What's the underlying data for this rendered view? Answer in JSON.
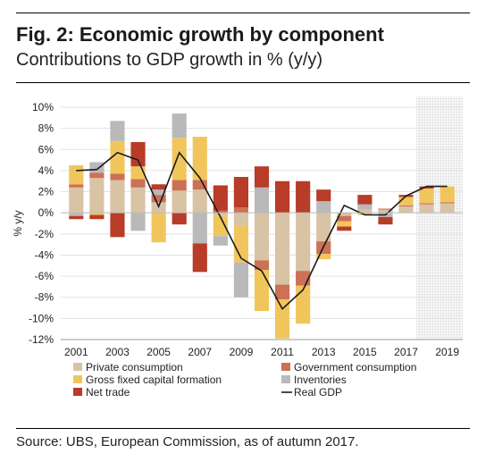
{
  "title": "Fig. 2: Economic growth by component",
  "subtitle": "Contributions to GDP growth in % (y/y)",
  "source": "Source: UBS, European Commission, as of autumn 2017.",
  "chart_data": {
    "type": "bar",
    "stacked": true,
    "x": [
      2001,
      2002,
      2003,
      2004,
      2005,
      2006,
      2007,
      2008,
      2009,
      2010,
      2011,
      2012,
      2013,
      2014,
      2015,
      2016,
      2017,
      2018,
      2019
    ],
    "x_tick_labels": [
      "2001",
      "2003",
      "2005",
      "2007",
      "2009",
      "2011",
      "2013",
      "2015",
      "2017",
      "2019"
    ],
    "ylabel": "% y/y",
    "ylim": [
      -12,
      10
    ],
    "y_ticks": [
      10,
      8,
      6,
      4,
      2,
      0,
      -2,
      -4,
      -6,
      -8,
      -10,
      -12
    ],
    "y_tick_labels": [
      "10%",
      "8%",
      "6%",
      "4%",
      "2%",
      "0%",
      "-2%",
      "-4%",
      "-6%",
      "-8%",
      "-10%",
      "-12%"
    ],
    "forecast_shading": [
      2018,
      2019
    ],
    "legend_position": "bottom",
    "series": [
      {
        "name": "Private consumption",
        "kind": "bar",
        "color": "#d9c3a5",
        "values": [
          2.4,
          3.3,
          3.1,
          2.4,
          1.0,
          2.1,
          2.2,
          -0.3,
          -1.2,
          -4.5,
          -6.8,
          -5.5,
          -2.7,
          -0.3,
          0.3,
          0.3,
          0.6,
          0.8,
          0.9
        ]
      },
      {
        "name": "Government consumption",
        "kind": "bar",
        "color": "#cc7056",
        "values": [
          0.3,
          0.5,
          0.6,
          0.8,
          0.7,
          1.0,
          0.9,
          0.2,
          0.5,
          -0.9,
          -1.4,
          -1.4,
          -1.2,
          -0.5,
          0.0,
          0.1,
          0.1,
          0.1,
          0.1
        ]
      },
      {
        "name": "Gross fixed capital formation",
        "kind": "bar",
        "color": "#f0c65c",
        "values": [
          1.8,
          -0.2,
          3.1,
          1.2,
          -2.8,
          4.0,
          4.1,
          -1.9,
          -3.5,
          -3.9,
          -3.7,
          -3.6,
          -0.5,
          -0.5,
          -0.2,
          0.0,
          0.8,
          1.4,
          1.5
        ]
      },
      {
        "name": "Inventories",
        "kind": "bar",
        "color": "#b9b9b9",
        "values": [
          -0.3,
          1.0,
          1.9,
          -1.7,
          0.5,
          2.3,
          -2.9,
          -0.9,
          -3.3,
          2.4,
          0.0,
          0.0,
          1.1,
          0.0,
          0.5,
          -0.4,
          0.0,
          0.0,
          0.0
        ]
      },
      {
        "name": "Net trade",
        "kind": "bar",
        "color": "#b83c27",
        "values": [
          -0.3,
          -0.4,
          -2.3,
          2.3,
          0.5,
          -1.1,
          -2.7,
          2.4,
          2.9,
          2.0,
          3.0,
          3.0,
          1.1,
          -0.4,
          0.9,
          -0.7,
          0.2,
          0.2,
          0.0
        ]
      },
      {
        "name": "Real GDP",
        "kind": "line",
        "color": "#1a1a1a",
        "values": [
          4.0,
          4.1,
          5.7,
          5.0,
          0.6,
          5.7,
          3.3,
          -0.4,
          -4.3,
          -5.5,
          -9.1,
          -7.3,
          -3.2,
          0.7,
          -0.2,
          -0.2,
          1.6,
          2.5,
          2.5
        ]
      }
    ]
  }
}
